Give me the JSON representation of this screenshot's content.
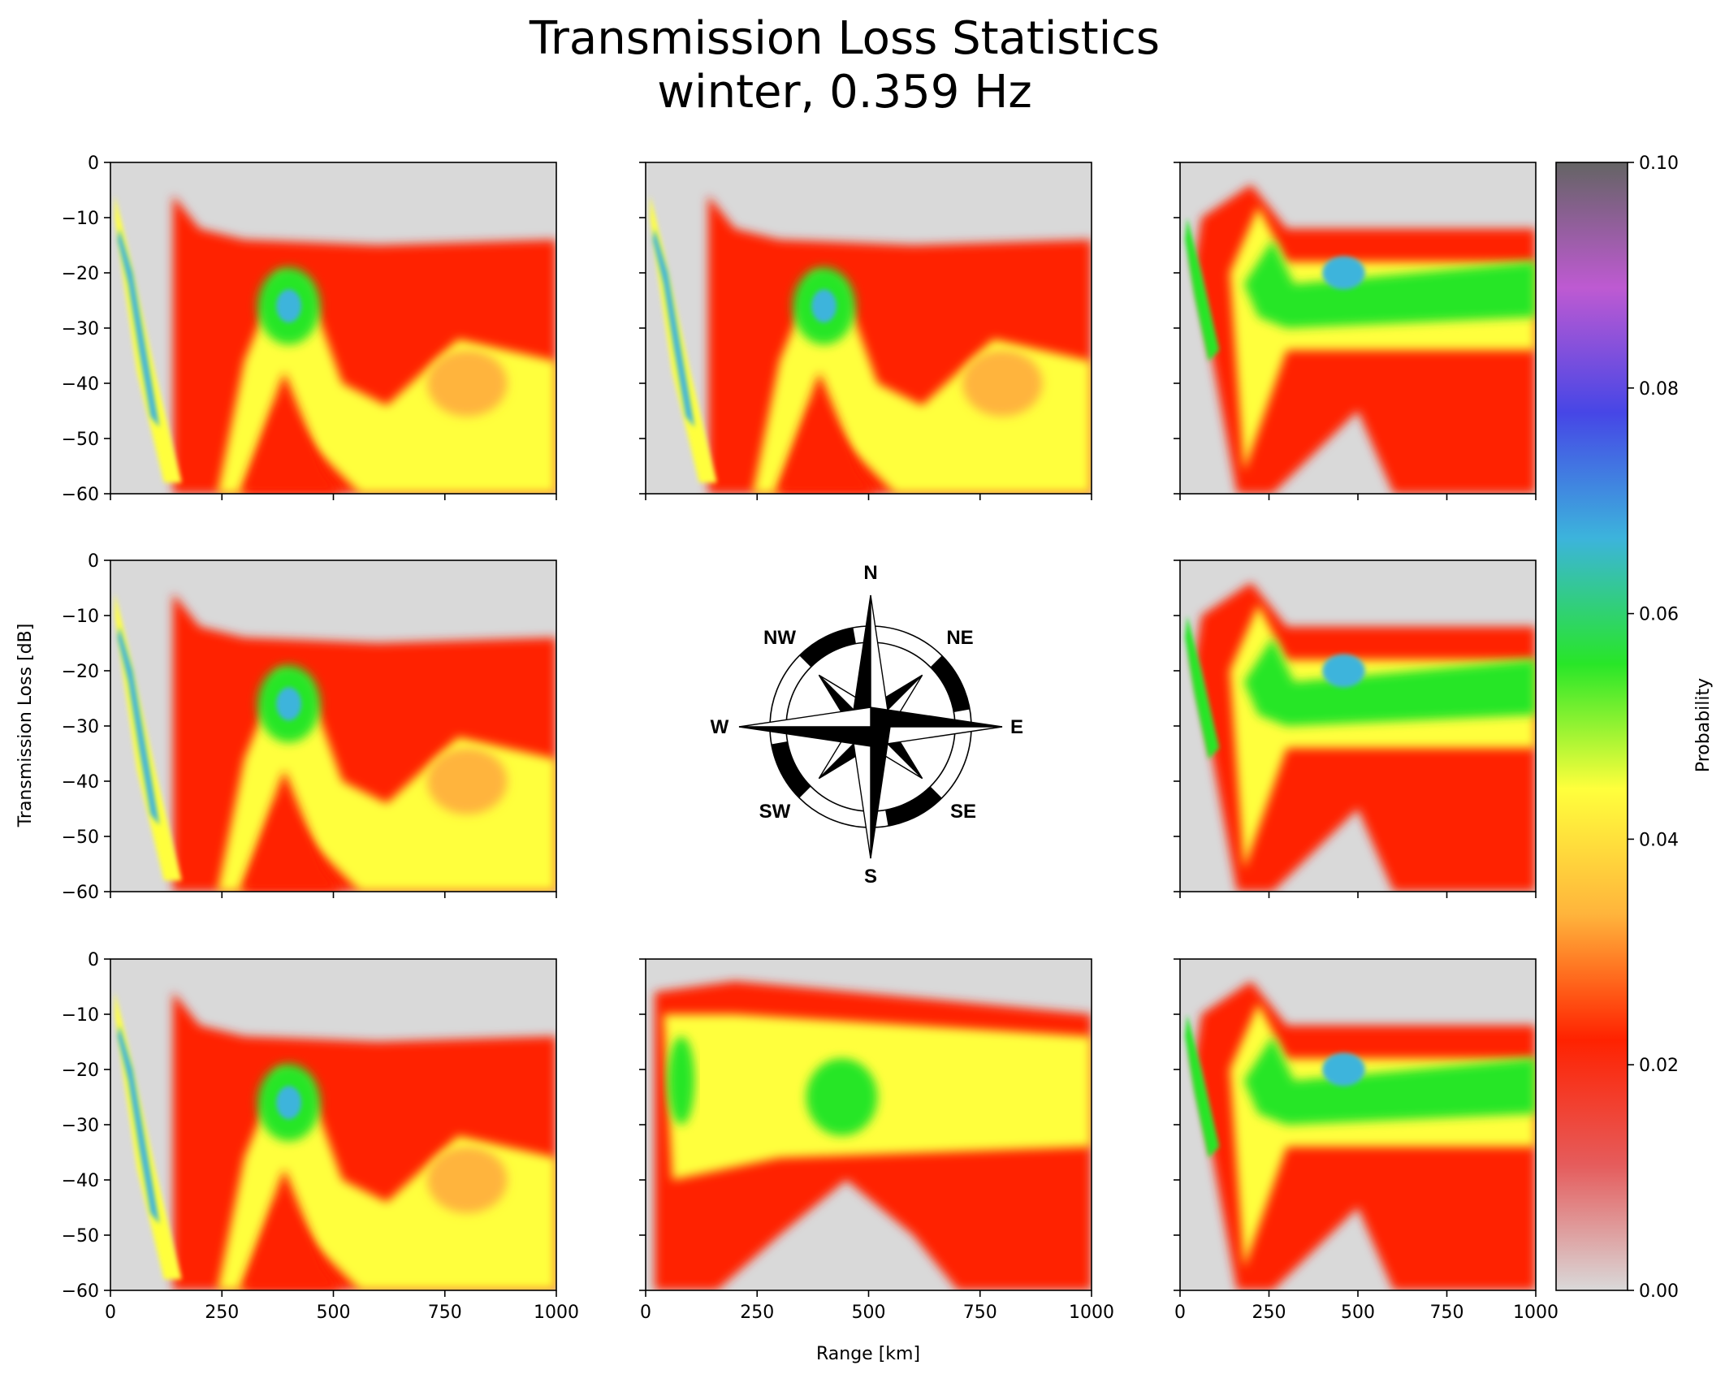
{
  "figure": {
    "title_line1": "Transmission Loss Statistics",
    "title_line2": "winter, 0.359 Hz",
    "xlabel": "Range [km]",
    "ylabel": "Transmission Loss [dB]",
    "colorbar_label": "Probability"
  },
  "compass": {
    "labels": {
      "n": "N",
      "ne": "NE",
      "e": "E",
      "se": "SE",
      "s": "S",
      "sw": "SW",
      "w": "W",
      "nw": "NW"
    }
  },
  "chart_data": {
    "type": "heatmap",
    "layout": "3x3 grid with compass rose in center",
    "x_ticks": [
      0,
      250,
      500,
      750,
      1000
    ],
    "x_tick_labels": [
      "0",
      "250",
      "500",
      "750",
      "1000"
    ],
    "y_ticks": [
      0,
      -10,
      -20,
      -30,
      -40,
      -50,
      -60
    ],
    "y_tick_labels": [
      "0",
      "−10",
      "−20",
      "−30",
      "−40",
      "−50",
      "−60"
    ],
    "xlim": [
      0,
      1000
    ],
    "ylim": [
      -60,
      0
    ],
    "colorbar": {
      "range": [
        0.0,
        0.1
      ],
      "ticks": [
        0.0,
        0.02,
        0.04,
        0.06,
        0.08,
        0.1
      ],
      "tick_labels": [
        "0.00",
        "0.02",
        "0.04",
        "0.06",
        "0.08",
        "0.10"
      ],
      "colors": [
        "#d9d9d9",
        "#e55c5c",
        "#ff2200",
        "#ffb43c",
        "#ffff3c",
        "#28e628",
        "#3cb4dc",
        "#4646e6",
        "#be5ad2",
        "#646464"
      ]
    },
    "panels": [
      {
        "direction": "NW",
        "row": 0,
        "col": 0,
        "style": "long-range"
      },
      {
        "direction": "N",
        "row": 0,
        "col": 1,
        "style": "long-range"
      },
      {
        "direction": "NE",
        "row": 0,
        "col": 2,
        "style": "ducted"
      },
      {
        "direction": "W",
        "row": 1,
        "col": 0,
        "style": "long-range"
      },
      {
        "direction": "E",
        "row": 1,
        "col": 2,
        "style": "ducted"
      },
      {
        "direction": "SW",
        "row": 2,
        "col": 0,
        "style": "long-range"
      },
      {
        "direction": "S",
        "row": 2,
        "col": 1,
        "style": "broad"
      },
      {
        "direction": "SE",
        "row": 2,
        "col": 2,
        "style": "ducted"
      }
    ]
  }
}
